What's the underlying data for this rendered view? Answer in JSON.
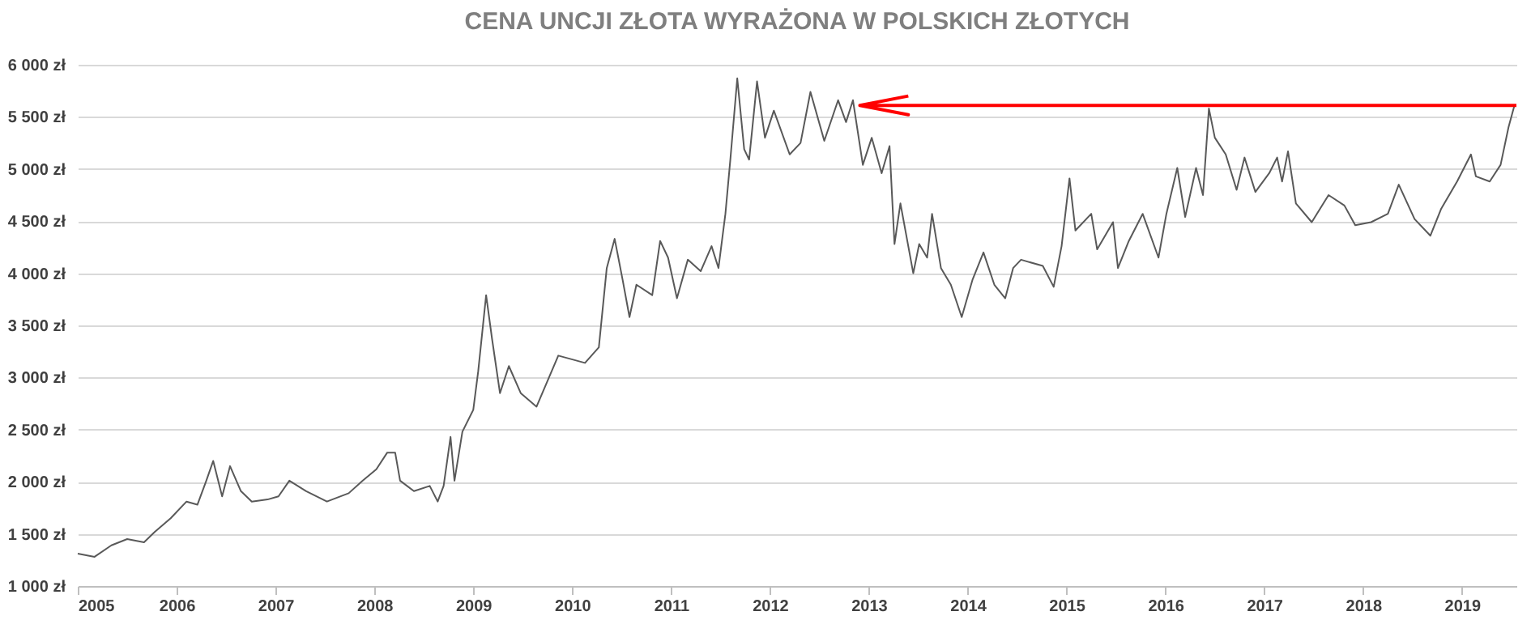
{
  "chart_data": {
    "type": "line",
    "title": "CENA UNCJI ZŁOTA WYRAŻONA W POLSKICH ZŁOTYCH",
    "series": [
      {
        "color": "#595959",
        "x": [
          2005.0,
          2005.17,
          2005.34,
          2005.5,
          2005.67,
          2005.78,
          2005.94,
          2006.1,
          2006.21,
          2006.3,
          2006.37,
          2006.46,
          2006.54,
          2006.65,
          2006.76,
          2006.92,
          2007.03,
          2007.14,
          2007.31,
          2007.52,
          2007.74,
          2007.88,
          2008.02,
          2008.13,
          2008.21,
          2008.26,
          2008.4,
          2008.56,
          2008.64,
          2008.7,
          2008.77,
          2008.81,
          2008.89,
          2009.0,
          2009.05,
          2009.13,
          2009.19,
          2009.27,
          2009.36,
          2009.48,
          2009.64,
          2009.86,
          2010.13,
          2010.27,
          2010.35,
          2010.43,
          2010.51,
          2010.58,
          2010.65,
          2010.81,
          2010.89,
          2010.97,
          2011.06,
          2011.17,
          2011.3,
          2011.41,
          2011.48,
          2011.55,
          2011.6,
          2011.67,
          2011.74,
          2011.79,
          2011.87,
          2011.95,
          2012.04,
          2012.2,
          2012.31,
          2012.41,
          2012.55,
          2012.69,
          2012.77,
          2012.84,
          2012.94,
          2013.03,
          2013.13,
          2013.21,
          2013.26,
          2013.32,
          2013.45,
          2013.51,
          2013.59,
          2013.64,
          2013.73,
          2013.83,
          2013.94,
          2014.05,
          2014.16,
          2014.27,
          2014.38,
          2014.46,
          2014.54,
          2014.76,
          2014.87,
          2014.95,
          2015.03,
          2015.09,
          2015.25,
          2015.31,
          2015.47,
          2015.52,
          2015.63,
          2015.77,
          2015.93,
          2016.01,
          2016.12,
          2016.2,
          2016.31,
          2016.38,
          2016.44,
          2016.5,
          2016.61,
          2016.72,
          2016.8,
          2016.91,
          2017.05,
          2017.13,
          2017.18,
          2017.24,
          2017.32,
          2017.48,
          2017.65,
          2017.81,
          2017.92,
          2018.08,
          2018.25,
          2018.36,
          2018.52,
          2018.68,
          2018.79,
          2018.95,
          2019.09,
          2019.14,
          2019.28,
          2019.39,
          2019.47,
          2019.53
        ],
        "values": [
          1310,
          1280,
          1390,
          1450,
          1420,
          1520,
          1650,
          1810,
          1780,
          2010,
          2200,
          1860,
          2150,
          1910,
          1810,
          1830,
          1860,
          2010,
          1910,
          1810,
          1890,
          2010,
          2120,
          2280,
          2280,
          2010,
          1910,
          1960,
          1810,
          1960,
          2430,
          2010,
          2480,
          2690,
          3060,
          3790,
          3370,
          2850,
          3110,
          2850,
          2720,
          3210,
          3140,
          3290,
          4050,
          4330,
          3940,
          3580,
          3890,
          3790,
          4310,
          4150,
          3760,
          4130,
          4020,
          4260,
          4050,
          4570,
          5090,
          5870,
          5190,
          5090,
          5840,
          5300,
          5560,
          5140,
          5250,
          5740,
          5270,
          5660,
          5450,
          5660,
          5040,
          5300,
          4960,
          5220,
          4280,
          4670,
          4000,
          4280,
          4150,
          4570,
          4050,
          3890,
          3580,
          3940,
          4200,
          3890,
          3760,
          4050,
          4130,
          4070,
          3870,
          4260,
          4910,
          4410,
          4570,
          4230,
          4490,
          4050,
          4310,
          4570,
          4150,
          4570,
          5010,
          4540,
          5010,
          4750,
          5580,
          5300,
          5140,
          4800,
          5110,
          4780,
          4960,
          5110,
          4880,
          5170,
          4670,
          4490,
          4750,
          4650,
          4460,
          4490,
          4570,
          4850,
          4520,
          4360,
          4620,
          4880,
          5140,
          4930,
          4880,
          5040,
          5400,
          5610
        ]
      },
      {
        "type": "line",
        "color": "#ff0000",
        "x": [
          2013.4,
          2012.91,
          2013.4,
          2012.91,
          2019.55
        ],
        "values": [
          5700,
          5610,
          5520,
          5610,
          5610
        ]
      }
    ],
    "xlim": [
      2005,
      2019.55
    ],
    "xticks": [
      2005,
      2006,
      2007,
      2008,
      2009,
      2010,
      2011,
      2012,
      2013,
      2014,
      2015,
      2016,
      2017,
      2018,
      2019
    ],
    "ylim": [
      1000,
      6000
    ],
    "yticks": [
      {
        "value": 1000,
        "label": "1 000 zł"
      },
      {
        "value": 1500,
        "label": "1 500 zł"
      },
      {
        "value": 2000,
        "label": "2 000 zł"
      },
      {
        "value": 2500,
        "label": "2 500 zł"
      },
      {
        "value": 3000,
        "label": "3 000 zł"
      },
      {
        "value": 3500,
        "label": "3 500 zł"
      },
      {
        "value": 4000,
        "label": "4 000 zł"
      },
      {
        "value": 4500,
        "label": "4 500 zł"
      },
      {
        "value": 5000,
        "label": "5 000 zł"
      },
      {
        "value": 5500,
        "label": "5 500 zł"
      },
      {
        "value": 6000,
        "label": "6 000 zł"
      }
    ],
    "grid": "y",
    "marker": "none",
    "line_style": "solid"
  }
}
